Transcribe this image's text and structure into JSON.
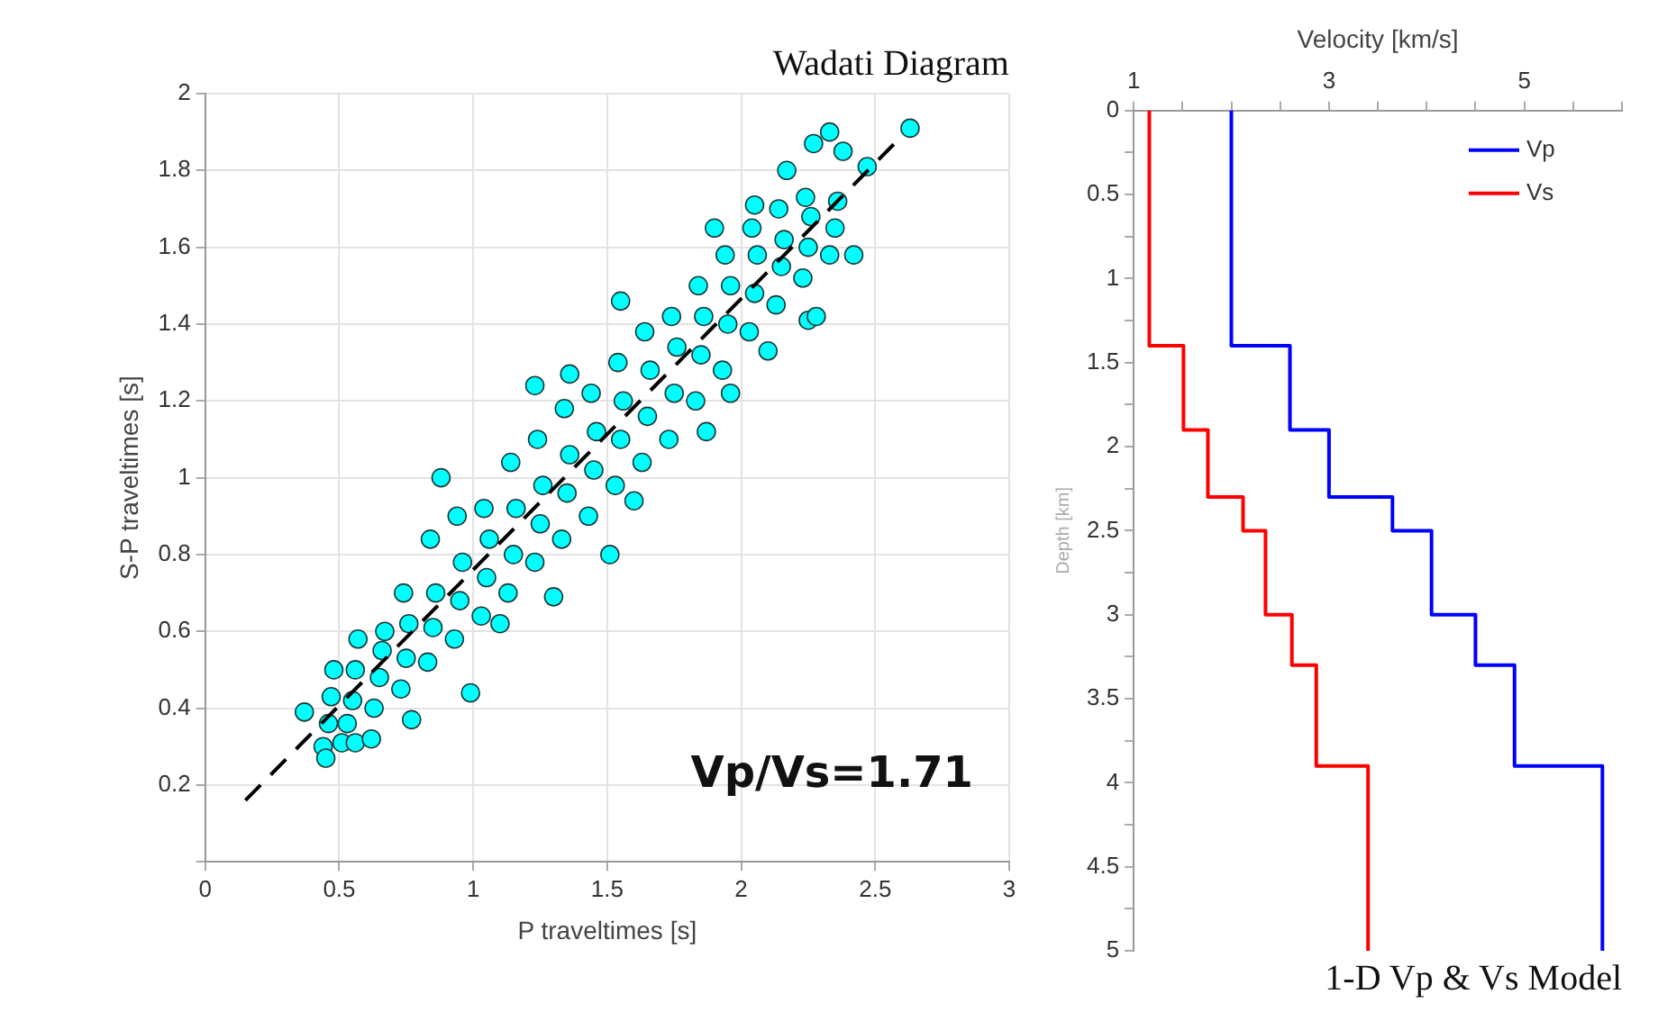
{
  "chart_data": [
    {
      "type": "scatter",
      "title": "Wadati Diagram",
      "xlabel": "P traveltimes [s]",
      "ylabel": "S-P traveltimes [s]",
      "xlim": [
        0,
        3
      ],
      "xticks": [
        0,
        0.5,
        1,
        1.5,
        2,
        2.5,
        3
      ],
      "ylim": [
        0,
        2
      ],
      "yticks": [
        {
          "value": 0,
          "label": null
        },
        0.2,
        0.4,
        0.6,
        0.8,
        1,
        1.2,
        1.4,
        1.6,
        1.8,
        2
      ],
      "grid": true,
      "legend": false,
      "marker": "circle",
      "annotations": [
        "Vp/Vs=1.71"
      ],
      "series": [
        {
          "color": "#00ffff",
          "x": [
            0.44,
            0.46,
            0.47,
            0.48,
            0.53,
            0.55,
            0.56,
            0.57,
            0.63,
            0.65,
            0.66,
            0.67,
            0.73,
            0.75,
            0.76,
            0.74,
            0.83,
            0.85,
            0.86,
            0.84,
            0.93,
            0.95,
            0.96,
            0.94,
            1.03,
            1.05,
            1.06,
            1.04,
            1.13,
            1.15,
            1.16,
            1.14,
            1.23,
            1.25,
            1.26,
            1.24,
            1.33,
            1.35,
            1.36,
            1.34,
            1.43,
            1.45,
            1.46,
            1.44,
            1.53,
            1.55,
            1.56,
            1.54,
            1.63,
            1.65,
            1.66,
            1.64,
            1.73,
            1.75,
            1.76,
            1.74,
            1.83,
            1.85,
            1.86,
            1.84,
            1.93,
            1.95,
            1.96,
            1.94,
            2.03,
            2.05,
            2.06,
            2.04,
            2.13,
            2.15,
            2.16,
            2.14,
            2.23,
            2.25,
            2.26,
            2.24,
            2.33,
            2.35,
            2.36,
            0.88,
            0.99,
            0.45,
            0.37,
            2.63,
            2.33,
            2.17,
            2.42,
            2.25,
            2.28,
            2.1,
            1.55,
            1.23,
            1.36,
            1.51,
            1.3,
            1.87,
            1.96,
            0.51,
            0.56,
            0.62,
            0.77,
            2.38,
            2.27,
            2.47,
            2.05,
            1.9,
            1.6,
            1.1
          ],
          "values": [
            0.3,
            0.36,
            0.43,
            0.5,
            0.36,
            0.42,
            0.5,
            0.58,
            0.4,
            0.48,
            0.55,
            0.6,
            0.45,
            0.53,
            0.62,
            0.7,
            0.52,
            0.61,
            0.7,
            0.84,
            0.58,
            0.68,
            0.78,
            0.9,
            0.64,
            0.74,
            0.84,
            0.92,
            0.7,
            0.8,
            0.92,
            1.04,
            0.78,
            0.88,
            0.98,
            1.1,
            0.84,
            0.96,
            1.06,
            1.18,
            0.9,
            1.02,
            1.12,
            1.22,
            0.98,
            1.1,
            1.2,
            1.3,
            1.04,
            1.16,
            1.28,
            1.38,
            1.1,
            1.22,
            1.34,
            1.42,
            1.2,
            1.32,
            1.42,
            1.5,
            1.28,
            1.4,
            1.5,
            1.58,
            1.38,
            1.48,
            1.58,
            1.65,
            1.45,
            1.55,
            1.62,
            1.7,
            1.52,
            1.6,
            1.68,
            1.73,
            1.58,
            1.65,
            1.72,
            1.0,
            0.44,
            0.27,
            0.39,
            1.91,
            1.9,
            1.8,
            1.58,
            1.41,
            1.42,
            1.33,
            1.46,
            1.24,
            1.27,
            0.8,
            0.69,
            1.12,
            1.22,
            0.31,
            0.31,
            0.32,
            0.37,
            1.85,
            1.87,
            1.81,
            1.71,
            1.65,
            0.94,
            0.62
          ]
        },
        {
          "type": "line",
          "color": "#000000",
          "line_style": "dashed",
          "marker": "none",
          "x": [
            0.15,
            2.6
          ],
          "values": [
            0.16,
            1.89
          ]
        }
      ]
    },
    {
      "type": "line",
      "title": "1-D Vp & Vs Model",
      "xlabel": "Velocity [km/s]",
      "ylabel": "Depth [km]",
      "xlim": [
        1,
        6
      ],
      "xticks": [
        1,
        {
          "value": 1.5,
          "label": null
        },
        {
          "value": 2,
          "label": null
        },
        {
          "value": 2.5,
          "label": null
        },
        3,
        {
          "value": 3.5,
          "label": null
        },
        {
          "value": 4,
          "label": null
        },
        {
          "value": 4.5,
          "label": null
        },
        5,
        {
          "value": 5.5,
          "label": null
        },
        {
          "value": 6,
          "label": null
        }
      ],
      "ylim": [
        5,
        0
      ],
      "yticks": [
        0,
        {
          "value": 0.25,
          "label": null
        },
        0.5,
        {
          "value": 0.75,
          "label": null
        },
        1,
        {
          "value": 1.25,
          "label": null
        },
        1.5,
        {
          "value": 1.75,
          "label": null
        },
        2,
        {
          "value": 2.25,
          "label": null
        },
        2.5,
        {
          "value": 2.75,
          "label": null
        },
        3,
        {
          "value": 3.25,
          "label": null
        },
        3.5,
        {
          "value": 3.75,
          "label": null
        },
        4,
        {
          "value": 4.25,
          "label": null
        },
        4.5,
        {
          "value": 4.75,
          "label": null
        },
        5
      ],
      "grid": false,
      "legend": "top right",
      "marker": "none",
      "line_style": "solid",
      "series": [
        {
          "name": "Vp",
          "color": "#0000ff",
          "x": [
            2.0,
            2.0,
            2.6,
            2.6,
            3.0,
            3.0,
            3.65,
            3.65,
            4.05,
            4.05,
            4.5,
            4.5,
            4.9,
            4.9,
            5.8,
            5.8
          ],
          "values": [
            0,
            1.4,
            1.4,
            1.9,
            1.9,
            2.3,
            2.3,
            2.5,
            2.5,
            3.0,
            3.0,
            3.3,
            3.3,
            3.9,
            3.9,
            5
          ]
        },
        {
          "name": "Vs",
          "color": "#ff0000",
          "x": [
            1.16,
            1.16,
            1.51,
            1.51,
            1.76,
            1.76,
            2.12,
            2.12,
            2.35,
            2.35,
            2.62,
            2.62,
            2.87,
            2.87,
            3.4,
            3.4
          ],
          "values": [
            0,
            1.4,
            1.4,
            1.9,
            1.9,
            2.3,
            2.3,
            2.5,
            2.5,
            3.0,
            3.0,
            3.3,
            3.3,
            3.9,
            3.9,
            5
          ]
        }
      ]
    }
  ]
}
